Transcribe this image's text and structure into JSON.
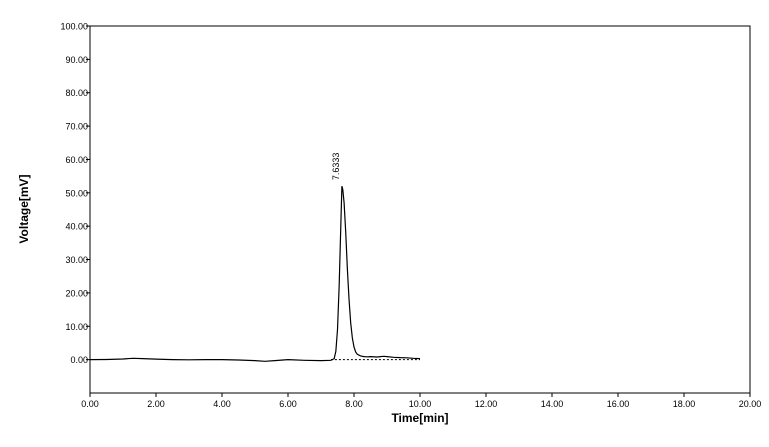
{
  "chart_data": {
    "type": "line",
    "xlabel": "Time[min]",
    "ylabel": "Voltage[mV]",
    "xlim": [
      0,
      20
    ],
    "ylim": [
      -10,
      100
    ],
    "x_ticks": [
      0,
      2,
      4,
      6,
      8,
      10,
      12,
      14,
      16,
      18,
      20
    ],
    "y_ticks": [
      0,
      10,
      20,
      30,
      40,
      50,
      60,
      70,
      80,
      90,
      100
    ],
    "x_tick_labels": [
      "0.00",
      "2.00",
      "4.00",
      "6.00",
      "8.00",
      "10.00",
      "12.00",
      "14.00",
      "16.00",
      "18.00",
      "20.00"
    ],
    "y_tick_labels": [
      "0.00",
      "10.00",
      "20.00",
      "30.00",
      "40.00",
      "50.00",
      "60.00",
      "70.00",
      "80.00",
      "90.00",
      "100.00"
    ],
    "grid": false,
    "legend": "none",
    "series": [
      {
        "color": "#000000",
        "x": [
          0.0,
          0.5,
          1.0,
          1.3,
          1.6,
          2.0,
          2.5,
          3.0,
          3.5,
          4.0,
          4.5,
          5.0,
          5.3,
          5.6,
          6.0,
          6.5,
          7.0,
          7.3,
          7.4,
          7.45,
          7.5,
          7.55,
          7.6,
          7.6333,
          7.66,
          7.7,
          7.75,
          7.8,
          7.85,
          7.9,
          7.95,
          8.0,
          8.05,
          8.1,
          8.2,
          8.3,
          8.4,
          8.5,
          8.7,
          8.9,
          9.0,
          9.2,
          9.4,
          9.6,
          9.8,
          10.0
        ],
        "y": [
          0.0,
          0.05,
          0.2,
          0.4,
          0.3,
          0.15,
          0.0,
          -0.05,
          0.0,
          0.0,
          -0.1,
          -0.3,
          -0.5,
          -0.3,
          0.0,
          -0.2,
          -0.3,
          -0.2,
          0.3,
          2.5,
          9.0,
          22.0,
          40.0,
          52.0,
          51.0,
          47.0,
          38.0,
          27.0,
          18.0,
          11.0,
          6.5,
          3.8,
          2.3,
          1.6,
          1.1,
          0.9,
          0.85,
          0.9,
          0.8,
          1.0,
          0.9,
          0.7,
          0.6,
          0.55,
          0.4,
          0.3
        ]
      }
    ],
    "baseline": {
      "style": "dashed",
      "x": [
        7.3,
        10.0
      ],
      "y": [
        0.0,
        0.0
      ]
    },
    "annotations": [
      {
        "text": "7.6333",
        "x": 7.6333,
        "y": 52.0
      }
    ]
  }
}
